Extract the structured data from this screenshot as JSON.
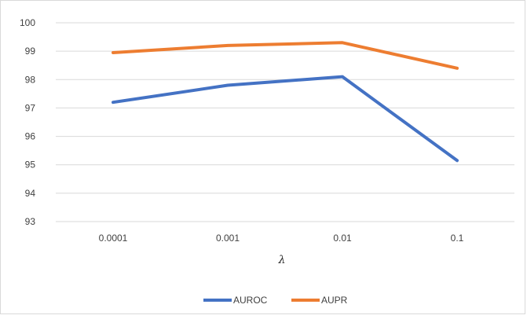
{
  "chart_data": {
    "type": "line",
    "categories": [
      "0.0001",
      "0.001",
      "0.01",
      "0.1"
    ],
    "xlabel": "λ",
    "ylabel": "",
    "ylim": [
      93,
      100
    ],
    "yticks": [
      93,
      94,
      95,
      96,
      97,
      98,
      99,
      100
    ],
    "grid": true,
    "legend_position": "bottom",
    "series": [
      {
        "name": "AUROC",
        "color": "#4472c4",
        "values": [
          97.2,
          97.8,
          98.1,
          95.15
        ]
      },
      {
        "name": "AUPR",
        "color": "#ed7d31",
        "values": [
          98.95,
          99.2,
          99.3,
          98.4
        ]
      }
    ]
  }
}
